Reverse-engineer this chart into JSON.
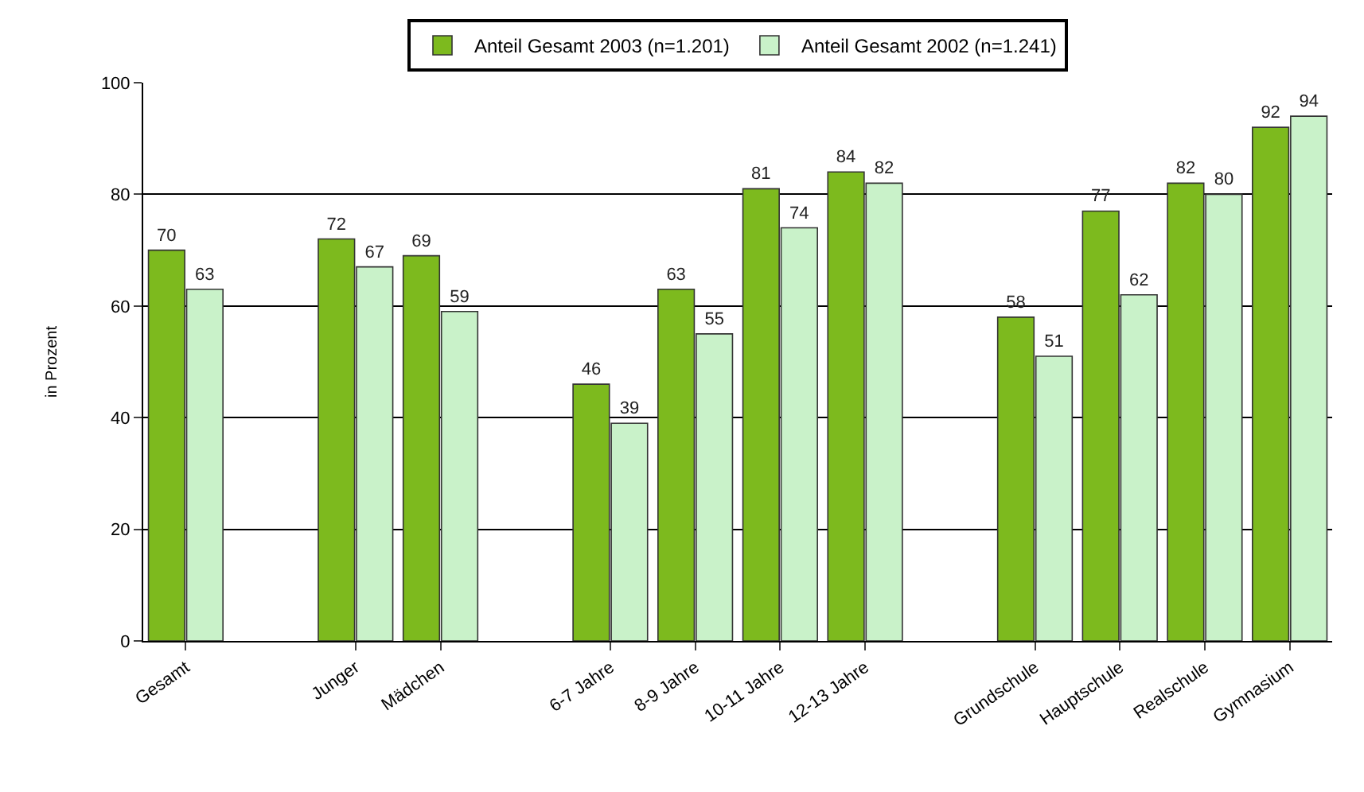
{
  "chart_data": {
    "type": "bar",
    "ylabel": "in Prozent",
    "categories": [
      "Gesamt",
      null,
      "Junger",
      "Mädchen",
      null,
      "6-7 Jahre",
      "8-9 Jahre",
      "10-11 Jahre",
      "12-13 Jahre",
      null,
      "Grundschule",
      "Hauptschule",
      "Realschule",
      "Gymnasium"
    ],
    "series": [
      {
        "name": "Anteil Gesamt 2003 (n=1.201)",
        "color": "#7dba1e",
        "values": [
          70,
          null,
          72,
          69,
          null,
          46,
          63,
          81,
          84,
          null,
          58,
          77,
          82,
          92
        ]
      },
      {
        "name": "Anteil Gesamt 2002 (n=1.241)",
        "color": "#c9f2c9",
        "values": [
          63,
          null,
          67,
          59,
          null,
          39,
          55,
          74,
          82,
          null,
          51,
          62,
          80,
          94
        ]
      }
    ],
    "ylim": [
      0,
      100
    ],
    "yticks": [
      0,
      20,
      40,
      60,
      80,
      100
    ],
    "grid": "y",
    "legend": "top",
    "data_labels": true
  }
}
